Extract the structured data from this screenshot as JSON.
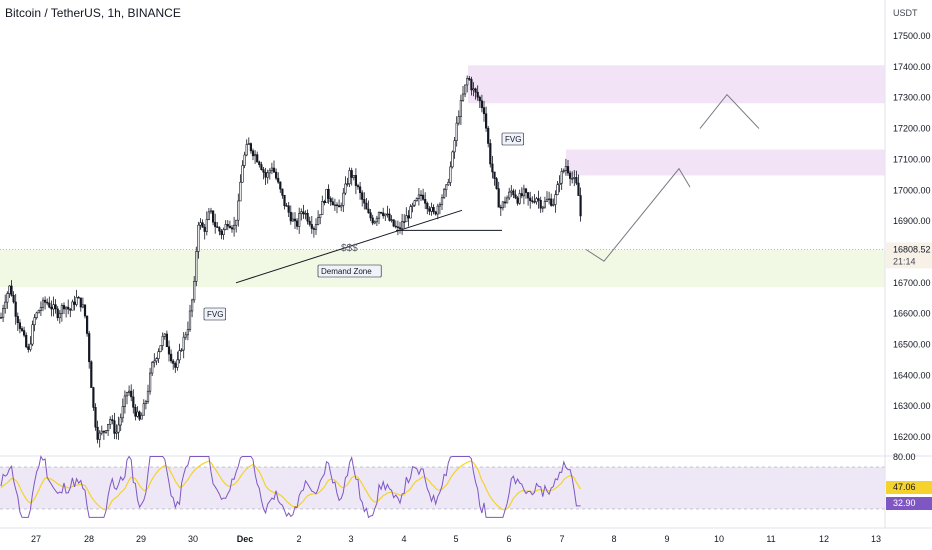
{
  "header": {
    "title": "Bitcoin / TetherUS, 1h, BINANCE"
  },
  "price_axis": {
    "currency": "USDT",
    "ticks": [
      "17500.00",
      "17400.00",
      "17300.00",
      "17200.00",
      "17100.00",
      "17000.00",
      "16900.00",
      "16808.52",
      "16700.00",
      "16600.00",
      "16500.00",
      "16400.00",
      "16300.00",
      "16200.00"
    ]
  },
  "last_price": {
    "value": "16808.52",
    "countdown": "21:14",
    "color": "#f57c00"
  },
  "rsi_axis": {
    "ticks": [
      "80.00",
      "47.06",
      "32.90"
    ]
  },
  "time_axis": {
    "labels": [
      "27",
      "28",
      "29",
      "30",
      "Dec",
      "2",
      "3",
      "4",
      "5",
      "6",
      "7",
      "8",
      "9",
      "10",
      "11",
      "12",
      "13"
    ]
  },
  "annotations": {
    "fvg_low": "FVG",
    "fvg_high": "FVG",
    "liquidity": "$$$",
    "demand_zone": "Demand Zone"
  },
  "colors": {
    "up": "#26a69a",
    "down": "#131722",
    "candle": "#131722",
    "zone_demand": "#f1f8e4",
    "zone_supply": "#f3e3f7",
    "rsi_line": "#7e57c2",
    "rsi_ma": "#f5d32c",
    "rsi_band": "#ede7f6",
    "last_price": "#f57c00",
    "projection": "#787b86"
  },
  "chart_data": {
    "type": "candlestick",
    "title": "Bitcoin / TetherUS, 1h, BINANCE",
    "ylabel": "USDT",
    "ylim": [
      16140,
      17580
    ],
    "zones": {
      "demand": [
        16686,
        16808
      ],
      "supply_low": [
        17048,
        17132
      ],
      "supply_high": [
        17282,
        17405
      ]
    },
    "close_path": [
      [
        0,
        16570
      ],
      [
        4,
        16640
      ],
      [
        10,
        16690
      ],
      [
        16,
        16600
      ],
      [
        22,
        16540
      ],
      [
        28,
        16470
      ],
      [
        34,
        16580
      ],
      [
        40,
        16620
      ],
      [
        46,
        16640
      ],
      [
        52,
        16620
      ],
      [
        58,
        16600
      ],
      [
        64,
        16630
      ],
      [
        70,
        16610
      ],
      [
        76,
        16650
      ],
      [
        82,
        16630
      ],
      [
        86,
        16580
      ],
      [
        90,
        16420
      ],
      [
        94,
        16270
      ],
      [
        98,
        16200
      ],
      [
        104,
        16220
      ],
      [
        110,
        16260
      ],
      [
        116,
        16210
      ],
      [
        122,
        16280
      ],
      [
        128,
        16360
      ],
      [
        134,
        16290
      ],
      [
        140,
        16250
      ],
      [
        146,
        16320
      ],
      [
        152,
        16430
      ],
      [
        158,
        16480
      ],
      [
        164,
        16530
      ],
      [
        170,
        16470
      ],
      [
        176,
        16420
      ],
      [
        182,
        16500
      ],
      [
        188,
        16560
      ],
      [
        194,
        16680
      ],
      [
        198,
        16900
      ],
      [
        204,
        16870
      ],
      [
        210,
        16930
      ],
      [
        216,
        16880
      ],
      [
        222,
        16860
      ],
      [
        228,
        16900
      ],
      [
        234,
        16880
      ],
      [
        238,
        16940
      ],
      [
        242,
        17080
      ],
      [
        248,
        17150
      ],
      [
        254,
        17120
      ],
      [
        260,
        17090
      ],
      [
        266,
        17040
      ],
      [
        272,
        17080
      ],
      [
        278,
        17020
      ],
      [
        284,
        16960
      ],
      [
        290,
        16920
      ],
      [
        296,
        16880
      ],
      [
        302,
        16940
      ],
      [
        308,
        16910
      ],
      [
        314,
        16880
      ],
      [
        320,
        16930
      ],
      [
        326,
        16990
      ],
      [
        332,
        16970
      ],
      [
        338,
        16930
      ],
      [
        344,
        16990
      ],
      [
        350,
        17060
      ],
      [
        356,
        17020
      ],
      [
        362,
        16970
      ],
      [
        368,
        16920
      ],
      [
        374,
        16900
      ],
      [
        380,
        16940
      ],
      [
        386,
        16920
      ],
      [
        392,
        16890
      ],
      [
        398,
        16870
      ],
      [
        404,
        16900
      ],
      [
        410,
        16930
      ],
      [
        416,
        16960
      ],
      [
        422,
        16990
      ],
      [
        428,
        16950
      ],
      [
        434,
        16920
      ],
      [
        440,
        16970
      ],
      [
        446,
        17000
      ],
      [
        452,
        17100
      ],
      [
        458,
        17240
      ],
      [
        464,
        17320
      ],
      [
        468,
        17370
      ],
      [
        472,
        17330
      ],
      [
        478,
        17300
      ],
      [
        484,
        17260
      ],
      [
        490,
        17100
      ],
      [
        496,
        17000
      ],
      [
        500,
        16940
      ],
      [
        506,
        16970
      ],
      [
        512,
        17000
      ],
      [
        518,
        16970
      ],
      [
        524,
        16990
      ],
      [
        530,
        16960
      ],
      [
        536,
        16980
      ],
      [
        542,
        16950
      ],
      [
        548,
        16970
      ],
      [
        554,
        16960
      ],
      [
        560,
        17040
      ],
      [
        566,
        17080
      ],
      [
        572,
        17040
      ],
      [
        576,
        17020
      ],
      [
        580,
        16960
      ],
      [
        582,
        16820
      ]
    ],
    "projection": [
      [
        586,
        16808
      ],
      [
        604,
        16770
      ],
      [
        679,
        17070
      ],
      [
        690,
        17010
      ]
    ],
    "projection_high": [
      [
        700,
        17200
      ],
      [
        727,
        17310
      ],
      [
        759,
        17200
      ]
    ],
    "liquidity_lines": [
      [
        [
          236,
          16700
        ],
        [
          462,
          16935
        ]
      ],
      [
        [
          396,
          16870
        ],
        [
          502,
          16870
        ]
      ]
    ],
    "rsi": {
      "ylim": [
        20,
        85
      ],
      "bands": [
        30,
        70
      ],
      "last": 32.9,
      "ma_last": 47.06
    }
  }
}
